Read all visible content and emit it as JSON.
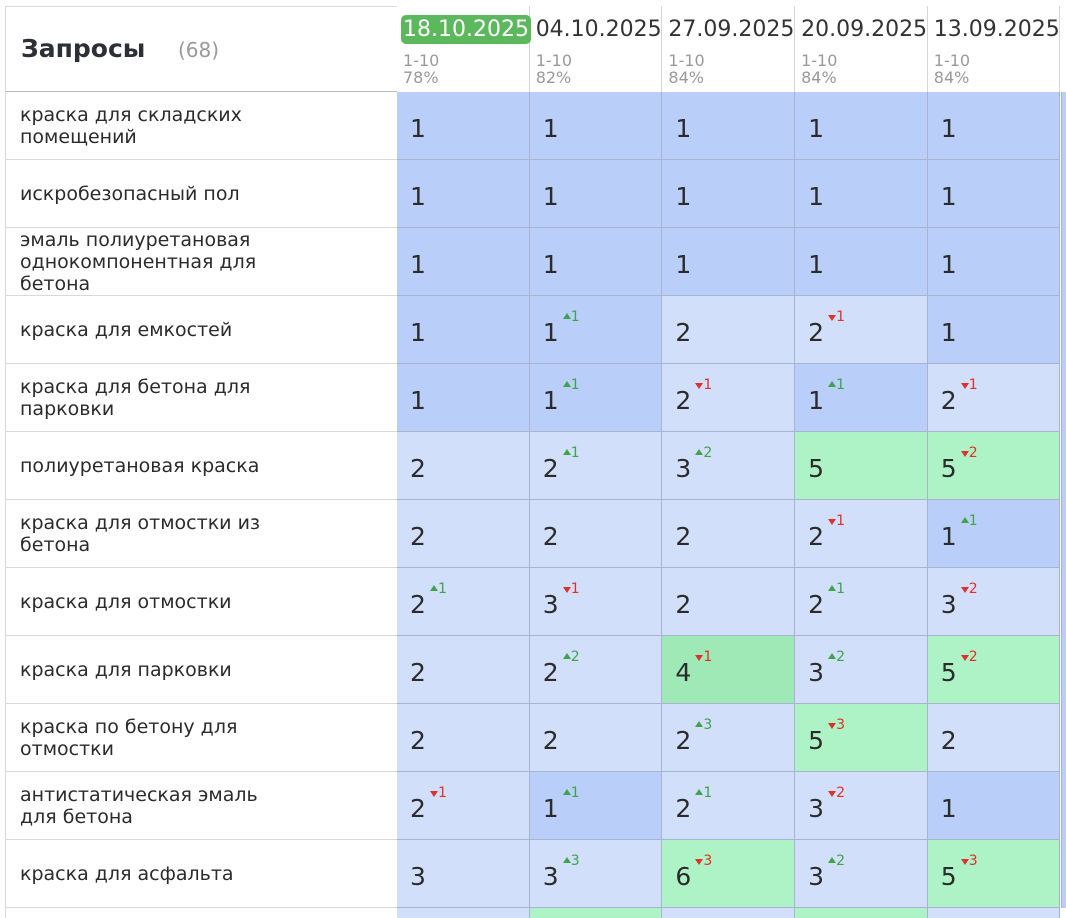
{
  "header": {
    "title": "Запросы",
    "count": "(68)"
  },
  "columns": [
    {
      "date": "18.10.2025",
      "range": "1-10",
      "percent": "78%",
      "current": true
    },
    {
      "date": "04.10.2025",
      "range": "1-10",
      "percent": "82%"
    },
    {
      "date": "27.09.2025",
      "range": "1-10",
      "percent": "84%"
    },
    {
      "date": "20.09.2025",
      "range": "1-10",
      "percent": "84%"
    },
    {
      "date": "13.09.2025",
      "range": "1-10",
      "percent": "84%"
    }
  ],
  "rows": [
    {
      "query": "краска для складских помещений",
      "cells": [
        {
          "position": 1
        },
        {
          "position": 1
        },
        {
          "position": 1
        },
        {
          "position": 1
        },
        {
          "position": 1
        }
      ]
    },
    {
      "query": "искробезопасный пол",
      "cells": [
        {
          "position": 1
        },
        {
          "position": 1
        },
        {
          "position": 1
        },
        {
          "position": 1
        },
        {
          "position": 1
        }
      ]
    },
    {
      "query": "эмаль полиуретановая однокомпонентная для бетона",
      "cells": [
        {
          "position": 1
        },
        {
          "position": 1
        },
        {
          "position": 1
        },
        {
          "position": 1
        },
        {
          "position": 1
        }
      ]
    },
    {
      "query": "краска для емкостей",
      "cells": [
        {
          "position": 1
        },
        {
          "position": 1,
          "change": {
            "value": 1,
            "direction": "up"
          }
        },
        {
          "position": 2
        },
        {
          "position": 2,
          "change": {
            "value": 1,
            "direction": "down"
          }
        },
        {
          "position": 1
        }
      ]
    },
    {
      "query": "краска для бетона для парковки",
      "cells": [
        {
          "position": 1
        },
        {
          "position": 1,
          "change": {
            "value": 1,
            "direction": "up"
          }
        },
        {
          "position": 2,
          "change": {
            "value": 1,
            "direction": "down"
          }
        },
        {
          "position": 1,
          "change": {
            "value": 1,
            "direction": "up"
          }
        },
        {
          "position": 2,
          "change": {
            "value": 1,
            "direction": "down"
          }
        }
      ]
    },
    {
      "query": "полиуретановая краска",
      "cells": [
        {
          "position": 2
        },
        {
          "position": 2,
          "change": {
            "value": 1,
            "direction": "up"
          }
        },
        {
          "position": 3,
          "change": {
            "value": 2,
            "direction": "up"
          }
        },
        {
          "position": 5
        },
        {
          "position": 5,
          "change": {
            "value": 2,
            "direction": "down"
          }
        }
      ]
    },
    {
      "query": "краска для отмостки из бетона",
      "cells": [
        {
          "position": 2
        },
        {
          "position": 2
        },
        {
          "position": 2
        },
        {
          "position": 2,
          "change": {
            "value": 1,
            "direction": "down"
          }
        },
        {
          "position": 1,
          "change": {
            "value": 1,
            "direction": "up"
          }
        }
      ]
    },
    {
      "query": "краска для отмостки",
      "cells": [
        {
          "position": 2,
          "change": {
            "value": 1,
            "direction": "up"
          }
        },
        {
          "position": 3,
          "change": {
            "value": 1,
            "direction": "down"
          }
        },
        {
          "position": 2
        },
        {
          "position": 2,
          "change": {
            "value": 1,
            "direction": "up"
          }
        },
        {
          "position": 3,
          "change": {
            "value": 2,
            "direction": "down"
          }
        }
      ]
    },
    {
      "query": "краска для парковки",
      "cells": [
        {
          "position": 2
        },
        {
          "position": 2,
          "change": {
            "value": 2,
            "direction": "up"
          }
        },
        {
          "position": 4,
          "change": {
            "value": 1,
            "direction": "down"
          }
        },
        {
          "position": 3,
          "change": {
            "value": 2,
            "direction": "up"
          }
        },
        {
          "position": 5,
          "change": {
            "value": 2,
            "direction": "down"
          }
        }
      ]
    },
    {
      "query": "краска по бетону для отмостки",
      "cells": [
        {
          "position": 2
        },
        {
          "position": 2
        },
        {
          "position": 2,
          "change": {
            "value": 3,
            "direction": "up"
          }
        },
        {
          "position": 5,
          "change": {
            "value": 3,
            "direction": "down"
          }
        },
        {
          "position": 2
        }
      ]
    },
    {
      "query": "антистатическая эмаль для бетона",
      "cells": [
        {
          "position": 2,
          "change": {
            "value": 1,
            "direction": "down"
          }
        },
        {
          "position": 1,
          "change": {
            "value": 1,
            "direction": "up"
          }
        },
        {
          "position": 2,
          "change": {
            "value": 1,
            "direction": "up"
          }
        },
        {
          "position": 3,
          "change": {
            "value": 2,
            "direction": "down"
          }
        },
        {
          "position": 1
        }
      ]
    },
    {
      "query": "краска для асфальта",
      "cells": [
        {
          "position": 3
        },
        {
          "position": 3,
          "change": {
            "value": 3,
            "direction": "up"
          }
        },
        {
          "position": 6,
          "change": {
            "value": 3,
            "direction": "down"
          }
        },
        {
          "position": 3,
          "change": {
            "value": 2,
            "direction": "up"
          }
        },
        {
          "position": 5,
          "change": {
            "value": 3,
            "direction": "down"
          }
        }
      ]
    }
  ]
}
